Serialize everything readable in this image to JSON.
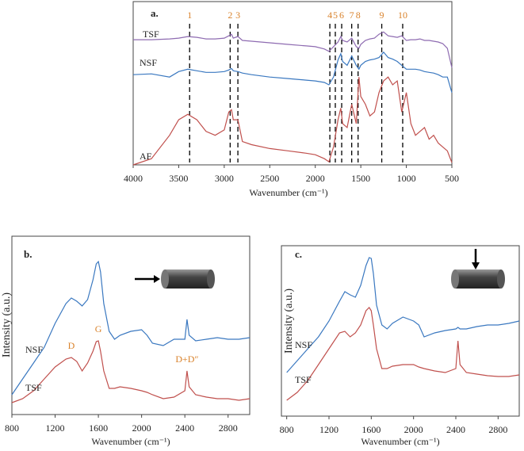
{
  "chart_data": [
    {
      "type": "line",
      "title": "a.",
      "x_label": "Wavenumber (cm⁻¹)",
      "xlim": [
        4000,
        500
      ],
      "xticks": [
        4000,
        3500,
        3000,
        2500,
        2000,
        1500,
        1000,
        500
      ],
      "ylim": [
        0,
        210
      ],
      "x": [
        4000,
        3800,
        3600,
        3500,
        3400,
        3300,
        3200,
        3100,
        3000,
        2950,
        2920,
        2900,
        2850,
        2800,
        2700,
        2500,
        2300,
        2100,
        2000,
        1900,
        1850,
        1800,
        1750,
        1720,
        1700,
        1650,
        1600,
        1550,
        1520,
        1500,
        1450,
        1400,
        1350,
        1300,
        1250,
        1200,
        1150,
        1100,
        1050,
        1000,
        950,
        900,
        850,
        800,
        750,
        700,
        650,
        600,
        550,
        500
      ],
      "series": [
        {
          "name": "TSF",
          "color": "#8e6bb1",
          "values": [
            161,
            161,
            162,
            163,
            165,
            164,
            162,
            162,
            163,
            166,
            168,
            163,
            165,
            160,
            159,
            157,
            155,
            153,
            152,
            149,
            146,
            152,
            158,
            165,
            160,
            158,
            163,
            152,
            150,
            155,
            160,
            162,
            163,
            168,
            171,
            166,
            165,
            164,
            166,
            160,
            161,
            161,
            162,
            160,
            160,
            159,
            158,
            156,
            150,
            125
          ]
        },
        {
          "name": "NSF",
          "color": "#3a78c0",
          "values": [
            116,
            117,
            113,
            120,
            123,
            121,
            119,
            119,
            120,
            122,
            124,
            121,
            120,
            118,
            116,
            113,
            111,
            109,
            108,
            106,
            103,
            113,
            135,
            143,
            133,
            128,
            140,
            128,
            123,
            128,
            133,
            135,
            136,
            138,
            145,
            138,
            136,
            133,
            128,
            123,
            123,
            123,
            122,
            120,
            119,
            118,
            116,
            113,
            113,
            93
          ]
        },
        {
          "name": "AF",
          "color": "#c0504d",
          "values": [
            0,
            8,
            38,
            58,
            65,
            58,
            43,
            38,
            45,
            68,
            71,
            58,
            58,
            30,
            26,
            21,
            18,
            15,
            13,
            8,
            4,
            23,
            58,
            73,
            53,
            48,
            78,
            53,
            113,
            88,
            78,
            63,
            68,
            93,
            108,
            113,
            103,
            108,
            68,
            93,
            53,
            38,
            43,
            48,
            33,
            38,
            28,
            23,
            18,
            3
          ]
        }
      ],
      "peaks": [
        {
          "label": "1",
          "x": 3380
        },
        {
          "label": "2",
          "x": 2935
        },
        {
          "label": "3",
          "x": 2850
        },
        {
          "label": "4",
          "x": 1840
        },
        {
          "label": "5",
          "x": 1780
        },
        {
          "label": "6",
          "x": 1710
        },
        {
          "label": "7",
          "x": 1600
        },
        {
          "label": "8",
          "x": 1530
        },
        {
          "label": "9",
          "x": 1270
        },
        {
          "label": "10",
          "x": 1040
        }
      ]
    },
    {
      "type": "line",
      "title": "b.",
      "x_label": "Wavenumber (cm⁻¹)",
      "y_label": "Intensity (a.u.)",
      "xlim": [
        800,
        3000
      ],
      "xticks": [
        800,
        1200,
        1600,
        2000,
        2400,
        2800
      ],
      "ylim": [
        0,
        225
      ],
      "x": [
        800,
        900,
        1000,
        1100,
        1200,
        1300,
        1350,
        1400,
        1450,
        1500,
        1550,
        1580,
        1600,
        1620,
        1650,
        1700,
        1750,
        1800,
        1900,
        2000,
        2050,
        2100,
        2200,
        2300,
        2400,
        2420,
        2440,
        2500,
        2600,
        2700,
        2800,
        2900,
        3000
      ],
      "series": [
        {
          "name": "NSF",
          "color": "#3a78c0",
          "values": [
            25,
            45,
            65,
            85,
            115,
            140,
            147,
            143,
            137,
            145,
            170,
            190,
            193,
            180,
            140,
            105,
            95,
            100,
            105,
            107,
            100,
            90,
            87,
            95,
            95,
            120,
            100,
            93,
            95,
            97,
            95,
            95,
            97
          ]
        },
        {
          "name": "TSF",
          "color": "#c0504d",
          "values": [
            15,
            20,
            30,
            45,
            60,
            70,
            72,
            67,
            55,
            65,
            80,
            92,
            93,
            80,
            55,
            33,
            33,
            35,
            33,
            30,
            28,
            25,
            20,
            22,
            30,
            55,
            35,
            25,
            22,
            20,
            20,
            18,
            20
          ]
        }
      ],
      "annotations": [
        {
          "label": "D",
          "x": 1350
        },
        {
          "label": "G",
          "x": 1600
        },
        {
          "label": "D+D″",
          "x": 2420
        }
      ]
    },
    {
      "type": "line",
      "title": "c.",
      "x_label": "Wavenumber (cm⁻¹)",
      "y_label": "Intensity (a.u.)",
      "xlim": [
        750,
        3000
      ],
      "xticks": [
        800,
        1200,
        1600,
        2000,
        2400,
        2800
      ],
      "ylim": [
        0,
        215
      ],
      "x": [
        800,
        900,
        1000,
        1100,
        1200,
        1300,
        1350,
        1400,
        1450,
        1500,
        1550,
        1580,
        1600,
        1620,
        1650,
        1700,
        1750,
        1800,
        1900,
        2000,
        2050,
        2100,
        2200,
        2300,
        2400,
        2420,
        2440,
        2500,
        2600,
        2700,
        2800,
        2900,
        3000
      ],
      "series": [
        {
          "name": "NSF",
          "color": "#3a78c0",
          "values": [
            55,
            70,
            85,
            100,
            120,
            145,
            157,
            153,
            150,
            165,
            190,
            200,
            199,
            180,
            140,
            115,
            110,
            117,
            125,
            120,
            115,
            100,
            105,
            108,
            110,
            112,
            110,
            110,
            113,
            115,
            115,
            117,
            120
          ]
        },
        {
          "name": "TSF",
          "color": "#c0504d",
          "values": [
            20,
            30,
            45,
            65,
            85,
            105,
            107,
            100,
            105,
            115,
            133,
            137,
            133,
            115,
            85,
            60,
            60,
            63,
            65,
            65,
            62,
            60,
            57,
            55,
            60,
            95,
            65,
            55,
            53,
            51,
            50,
            50,
            52
          ]
        }
      ]
    }
  ]
}
